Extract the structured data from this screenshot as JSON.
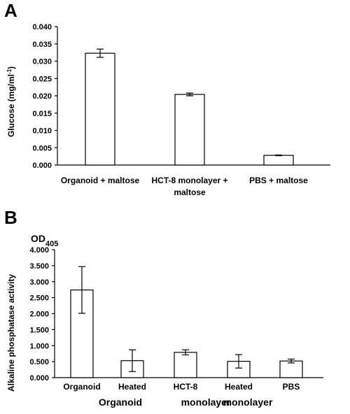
{
  "chart_data": [
    {
      "type": "bar",
      "panel_label": "A",
      "ylabel": "Glucose (mg/ml",
      "ylabel_sup": "-1",
      "ylabel_end": ")",
      "ylim": [
        0,
        0.04
      ],
      "ytick_labels": [
        "0.000",
        "0.005",
        "0.010",
        "0.015",
        "0.020",
        "0.025",
        "0.030",
        "0.035",
        "0.040"
      ],
      "yticks": [
        0,
        0.005,
        0.01,
        0.015,
        0.02,
        0.025,
        0.03,
        0.035,
        0.04
      ],
      "categories": [
        [
          "Organoid + maltose"
        ],
        [
          "HCT-8 monolayer +",
          "maltose"
        ],
        [
          "PBS + maltose"
        ]
      ],
      "values": [
        0.0323,
        0.0204,
        0.0028
      ],
      "errors": [
        0.0012,
        0.0004,
        0.0001
      ],
      "grid": false
    },
    {
      "type": "bar",
      "panel_label": "B",
      "ylabel": "Alkaline phosphatase activity",
      "unit_label": "OD",
      "unit_sub": "405",
      "ylim": [
        0,
        4
      ],
      "ytick_labels": [
        "0.000",
        "0.500",
        "1.000",
        "1.500",
        "2.000",
        "2.500",
        "3.000",
        "3.500",
        "4.000"
      ],
      "yticks": [
        0,
        0.5,
        1,
        1.5,
        2,
        2.5,
        3,
        3.5,
        4
      ],
      "categories": [
        "Organoid",
        "Heated",
        "HCT-8",
        "Heated",
        "PBS"
      ],
      "sub_labels": [
        "Organoid",
        "monolayer",
        "monolayer"
      ],
      "values": [
        2.74,
        0.53,
        0.79,
        0.51,
        0.52
      ],
      "errors": [
        0.73,
        0.34,
        0.08,
        0.21,
        0.06
      ],
      "grid": false
    }
  ]
}
